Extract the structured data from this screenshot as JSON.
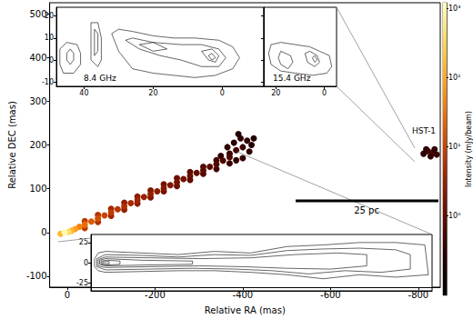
{
  "chart_data": [
    {
      "type": "image",
      "x_label": "Relative RA (mas)",
      "y_label": "Relative DEC (mas)",
      "xlim": [
        40,
        -850
      ],
      "xticks": [
        0,
        -200,
        -400,
        -600,
        -800
      ],
      "ylim": [
        -125,
        525
      ],
      "yticks": [
        -100,
        0,
        100,
        200,
        300,
        400,
        500
      ],
      "points": [
        [
          -40,
          26,
          8
        ],
        [
          -40,
          10,
          8
        ],
        [
          -70,
          40,
          6
        ],
        [
          -70,
          24,
          6
        ],
        [
          -100,
          54,
          4
        ],
        [
          -100,
          38,
          4
        ],
        [
          -130,
          68,
          3
        ],
        [
          -130,
          52,
          3
        ],
        [
          -160,
          82,
          2.5
        ],
        [
          -160,
          66,
          2.5
        ],
        [
          -190,
          96,
          2
        ],
        [
          -190,
          80,
          2
        ],
        [
          -220,
          110,
          1.5
        ],
        [
          -220,
          94,
          1.5
        ],
        [
          -250,
          124,
          1.2
        ],
        [
          -250,
          106,
          1.2
        ],
        [
          -280,
          138,
          0.9
        ],
        [
          -280,
          120,
          0.9
        ],
        [
          -310,
          150,
          0.7
        ],
        [
          -310,
          134,
          0.7
        ],
        [
          -340,
          165,
          0.5
        ],
        [
          -340,
          145,
          0.5
        ],
        [
          -370,
          180,
          0.4
        ],
        [
          -370,
          158,
          0.4
        ],
        [
          -350,
          175,
          0.3
        ],
        [
          -365,
          195,
          0.3
        ],
        [
          -380,
          205,
          0.25
        ],
        [
          -395,
          215,
          0.3
        ],
        [
          -410,
          210,
          0.3
        ],
        [
          -420,
          200,
          0.25
        ],
        [
          -415,
          185,
          0.3
        ],
        [
          -400,
          170,
          0.3
        ],
        [
          -385,
          165,
          0.35
        ],
        [
          -425,
          215,
          0.2
        ],
        [
          -390,
          225,
          0.2
        ],
        [
          -400,
          195,
          0.4
        ],
        [
          -385,
          188,
          0.5
        ],
        [
          -370,
          172,
          0.6
        ],
        [
          -355,
          164,
          0.6
        ],
        [
          -340,
          156,
          0.7
        ],
        [
          -325,
          150,
          0.8
        ],
        [
          -310,
          142,
          0.9
        ],
        [
          -295,
          136,
          1
        ],
        [
          -280,
          129,
          1.1
        ],
        [
          -265,
          122,
          1.3
        ],
        [
          -250,
          115,
          1.5
        ],
        [
          -235,
          108,
          1.8
        ],
        [
          -220,
          101,
          2
        ],
        [
          -205,
          94,
          2.4
        ],
        [
          -190,
          88,
          2.8
        ],
        [
          -175,
          81,
          3.2
        ],
        [
          -160,
          74,
          3.8
        ],
        [
          -145,
          67,
          4.5
        ],
        [
          -130,
          60,
          5.5
        ],
        [
          -115,
          53,
          6.5
        ],
        [
          -100,
          46,
          8
        ],
        [
          -85,
          39,
          10
        ],
        [
          -70,
          32,
          13
        ],
        [
          -55,
          25,
          18
        ],
        [
          -40,
          18,
          28
        ],
        [
          -28,
          13,
          45
        ],
        [
          -18,
          8,
          80
        ],
        [
          -10,
          4,
          150
        ],
        [
          15,
          -3,
          150
        ],
        [
          -3,
          1,
          400
        ],
        [
          6,
          0,
          1000
        ],
        [
          -812,
          180,
          0.3
        ],
        [
          -822,
          186,
          0.5
        ],
        [
          -832,
          182,
          0.6
        ],
        [
          -842,
          178,
          0.4
        ],
        [
          -828,
          174,
          0.3
        ],
        [
          -818,
          190,
          0.3
        ],
        [
          -837,
          190,
          0.3
        ]
      ],
      "colorbar": {
        "label": "Intensity (mJy/beam)",
        "log": true,
        "range": [
          0.07,
          1200
        ],
        "ticks": [
          {
            "value": 1,
            "label": "10⁰"
          },
          {
            "value": 10,
            "label": "10¹"
          },
          {
            "value": 100,
            "label": "10²"
          },
          {
            "value": 1000,
            "label": "10³"
          }
        ]
      },
      "annotations": [
        "HST-1",
        "25 pc"
      ]
    },
    {
      "type": "contour",
      "title": "8.4 GHz",
      "color": "#000000",
      "xlim": [
        48,
        -12
      ],
      "xticks": [
        40,
        20,
        0
      ],
      "ylim": [
        -12,
        24
      ],
      "yticks": [
        -10,
        0,
        10,
        20
      ],
      "contours": [
        [
          [
            47,
            5
          ],
          [
            45,
            8
          ],
          [
            42,
            7
          ],
          [
            41,
            3
          ],
          [
            41,
            -2
          ],
          [
            43,
            -6
          ],
          [
            46,
            -6
          ],
          [
            47,
            -2
          ],
          [
            47,
            5
          ]
        ],
        [
          [
            45,
            3
          ],
          [
            44,
            5
          ],
          [
            43,
            3
          ],
          [
            43,
            0
          ],
          [
            44,
            -2
          ],
          [
            45,
            0
          ],
          [
            45,
            3
          ]
        ],
        [
          [
            38,
            17
          ],
          [
            36,
            17
          ],
          [
            35,
            10
          ],
          [
            35,
            0
          ],
          [
            36,
            -3
          ],
          [
            38,
            0
          ],
          [
            38,
            10
          ],
          [
            38,
            17
          ]
        ],
        [
          [
            37,
            14
          ],
          [
            36,
            12
          ],
          [
            36,
            4
          ],
          [
            37,
            2
          ],
          [
            37,
            14
          ]
        ],
        [
          [
            32,
            12
          ],
          [
            30,
            4
          ],
          [
            28,
            0
          ],
          [
            26,
            -4
          ],
          [
            20,
            -6
          ],
          [
            14,
            -7
          ],
          [
            8,
            -8
          ],
          [
            2,
            -7
          ],
          [
            -3,
            -4
          ],
          [
            -5,
            1
          ],
          [
            -3,
            6
          ],
          [
            1,
            9
          ],
          [
            8,
            10
          ],
          [
            14,
            10
          ],
          [
            20,
            11
          ],
          [
            26,
            13
          ],
          [
            30,
            14
          ],
          [
            32,
            12
          ]
        ],
        [
          [
            28,
            9
          ],
          [
            24,
            5
          ],
          [
            18,
            2
          ],
          [
            12,
            0
          ],
          [
            6,
            -3
          ],
          [
            1,
            -3
          ],
          [
            -1,
            1
          ],
          [
            1,
            5
          ],
          [
            6,
            7
          ],
          [
            12,
            7
          ],
          [
            20,
            8
          ],
          [
            26,
            10
          ],
          [
            28,
            9
          ]
        ],
        [
          [
            24,
            7
          ],
          [
            20,
            4
          ],
          [
            16,
            5
          ],
          [
            20,
            8
          ],
          [
            24,
            7
          ]
        ],
        [
          [
            6,
            4
          ],
          [
            4,
            0
          ],
          [
            2,
            -1
          ],
          [
            1,
            2
          ],
          [
            3,
            5
          ],
          [
            6,
            4
          ]
        ],
        [
          [
            4,
            2
          ],
          [
            3,
            0
          ],
          [
            2,
            1
          ],
          [
            3,
            3
          ],
          [
            4,
            2
          ]
        ]
      ]
    },
    {
      "type": "contour",
      "title": "15.4 GHz",
      "color": "#000000",
      "xlim": [
        25,
        -5
      ],
      "xticks": [
        20,
        0
      ],
      "ylim": [
        -12,
        24
      ],
      "yticks": [
        -10,
        0,
        10,
        20
      ],
      "tick_labels": "x",
      "contours": [
        [
          [
            22,
            7
          ],
          [
            18,
            8
          ],
          [
            12,
            7
          ],
          [
            6,
            6
          ],
          [
            2,
            4
          ],
          [
            -2,
            2
          ],
          [
            -3,
            -3
          ],
          [
            -1,
            -6
          ],
          [
            5,
            -7
          ],
          [
            12,
            -6
          ],
          [
            18,
            -5
          ],
          [
            22,
            -2
          ],
          [
            23,
            3
          ],
          [
            22,
            7
          ]
        ],
        [
          [
            18,
            4
          ],
          [
            14,
            2
          ],
          [
            13,
            -1
          ],
          [
            15,
            -4
          ],
          [
            18,
            -2
          ],
          [
            19,
            1
          ],
          [
            18,
            4
          ]
        ],
        [
          [
            8,
            3
          ],
          [
            7,
            -1
          ],
          [
            4,
            -3
          ],
          [
            2,
            -1
          ],
          [
            3,
            2
          ],
          [
            6,
            4
          ],
          [
            8,
            3
          ]
        ],
        [
          [
            5,
            1
          ],
          [
            4,
            -1
          ],
          [
            3,
            0
          ],
          [
            4,
            2
          ],
          [
            5,
            1
          ]
        ]
      ]
    },
    {
      "type": "contour",
      "color": "#000000",
      "xlim": [
        20,
        -450
      ],
      "ylim": [
        -35,
        35
      ],
      "yticks": [
        -25,
        0,
        25
      ],
      "tick_labels": "y",
      "contours": [
        [
          [
            15,
            5
          ],
          [
            10,
            12
          ],
          [
            0,
            14
          ],
          [
            -50,
            12
          ],
          [
            -100,
            10
          ],
          [
            -150,
            14
          ],
          [
            -200,
            12
          ],
          [
            -250,
            20
          ],
          [
            -300,
            22
          ],
          [
            -350,
            25
          ],
          [
            -400,
            25
          ],
          [
            -440,
            22
          ],
          [
            -445,
            -15
          ],
          [
            -400,
            -18
          ],
          [
            -350,
            -15
          ],
          [
            -300,
            -20
          ],
          [
            -250,
            -15
          ],
          [
            -200,
            -12
          ],
          [
            -150,
            -10
          ],
          [
            -100,
            -10
          ],
          [
            -50,
            -11
          ],
          [
            0,
            -12
          ],
          [
            10,
            -10
          ],
          [
            15,
            -5
          ],
          [
            15,
            5
          ]
        ],
        [
          [
            12,
            5
          ],
          [
            0,
            10
          ],
          [
            -50,
            9
          ],
          [
            -100,
            7
          ],
          [
            -150,
            10
          ],
          [
            -200,
            9
          ],
          [
            -250,
            15
          ],
          [
            -300,
            17
          ],
          [
            -350,
            18
          ],
          [
            -400,
            16
          ],
          [
            -420,
            10
          ],
          [
            -420,
            -8
          ],
          [
            -380,
            -12
          ],
          [
            -330,
            -10
          ],
          [
            -280,
            -14
          ],
          [
            -230,
            -10
          ],
          [
            -180,
            -8
          ],
          [
            -120,
            -7
          ],
          [
            -60,
            -8
          ],
          [
            0,
            -9
          ],
          [
            12,
            -5
          ],
          [
            12,
            5
          ]
        ],
        [
          [
            10,
            4
          ],
          [
            0,
            7
          ],
          [
            -60,
            6
          ],
          [
            -130,
            5
          ],
          [
            -200,
            6
          ],
          [
            -260,
            10
          ],
          [
            -320,
            12
          ],
          [
            -360,
            10
          ],
          [
            -360,
            -4
          ],
          [
            -310,
            -8
          ],
          [
            -250,
            -7
          ],
          [
            -190,
            -5
          ],
          [
            -130,
            -4
          ],
          [
            -60,
            -5
          ],
          [
            0,
            -6
          ],
          [
            10,
            -4
          ],
          [
            10,
            4
          ]
        ],
        [
          [
            8,
            3
          ],
          [
            0,
            5
          ],
          [
            -50,
            3
          ],
          [
            -120,
            2
          ],
          [
            -120,
            -2
          ],
          [
            -50,
            -3
          ],
          [
            0,
            -4
          ],
          [
            8,
            -2
          ],
          [
            8,
            3
          ]
        ],
        [
          [
            6,
            2
          ],
          [
            -2,
            3
          ],
          [
            -20,
            2
          ],
          [
            -20,
            -2
          ],
          [
            -2,
            -3
          ],
          [
            6,
            -2
          ],
          [
            6,
            2
          ]
        ],
        [
          [
            4,
            1
          ],
          [
            -5,
            1.5
          ],
          [
            -5,
            -1.5
          ],
          [
            4,
            -1
          ],
          [
            4,
            1
          ]
        ]
      ]
    }
  ]
}
